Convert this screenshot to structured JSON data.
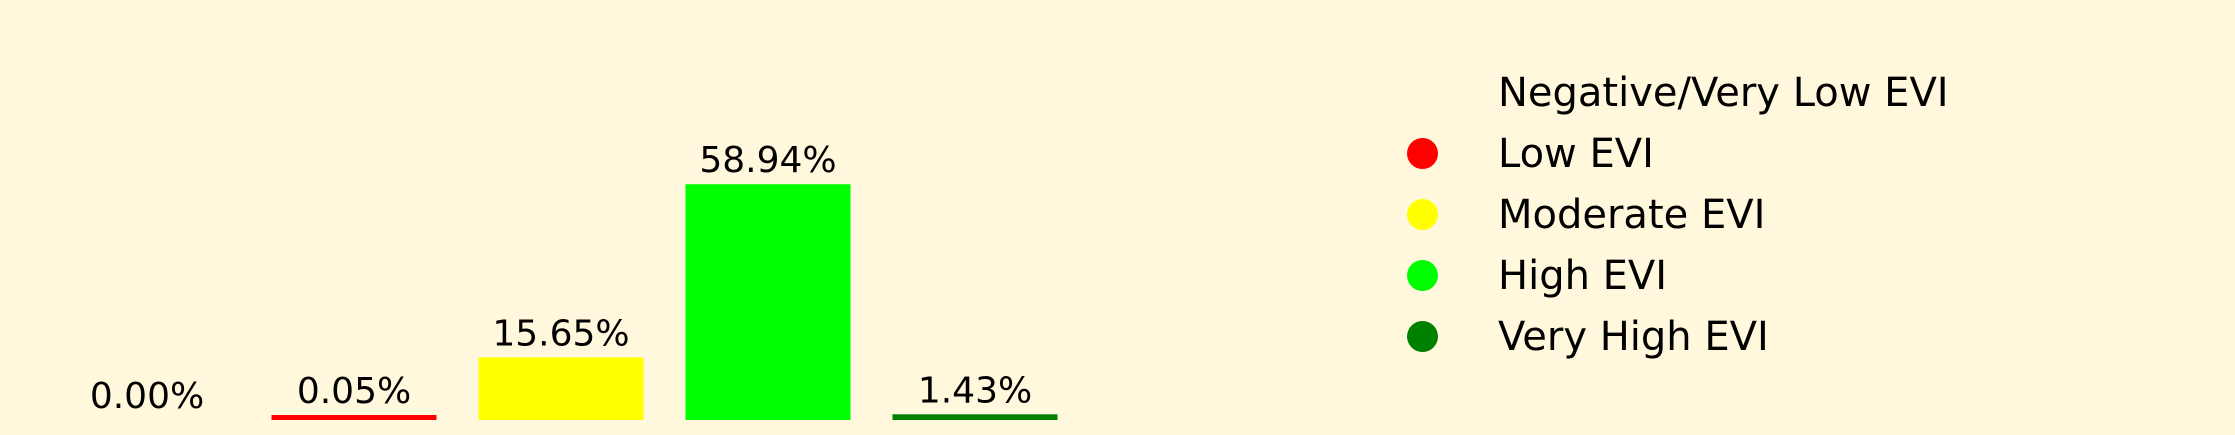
{
  "chart_data": {
    "type": "bar",
    "categories": [
      "Negative/Very Low EVI",
      "Low EVI",
      "Moderate EVI",
      "High EVI",
      "Very High EVI"
    ],
    "values": [
      0.0,
      0.05,
      15.65,
      58.94,
      1.43
    ],
    "labels": [
      "0.00%",
      "0.05%",
      "15.65%",
      "58.94%",
      "1.43%"
    ],
    "colors": [
      "#fff8dc",
      "#ff0000",
      "#ffff00",
      "#00ff00",
      "#008000"
    ],
    "ylim": [
      0,
      60
    ],
    "grid": false,
    "legend": "right"
  },
  "legend": [
    {
      "label": "Negative/Very Low EVI",
      "color": "#fff8dc"
    },
    {
      "label": "Low EVI",
      "color": "#ff0000"
    },
    {
      "label": "Moderate EVI",
      "color": "#ffff00"
    },
    {
      "label": "High EVI",
      "color": "#00ff00"
    },
    {
      "label": "Very High EVI",
      "color": "#008000"
    }
  ]
}
